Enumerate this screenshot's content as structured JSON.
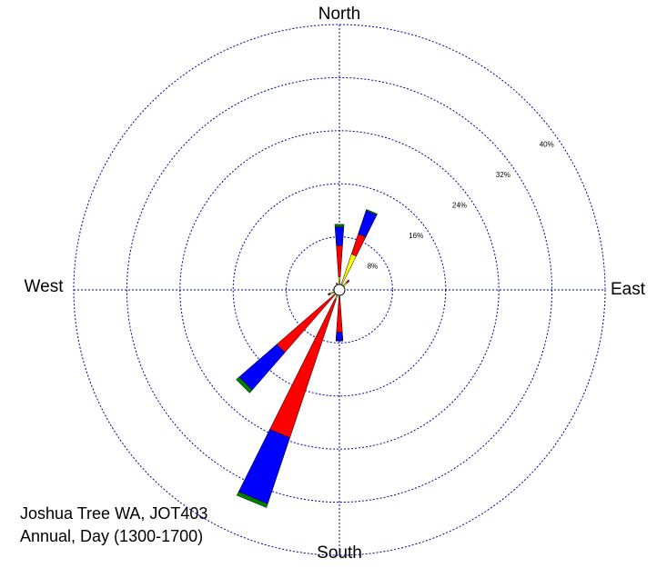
{
  "chart_data": {
    "type": "windrose",
    "direction_labels": [
      "North",
      "East",
      "South",
      "West"
    ],
    "x": [
      0,
      22.5,
      45,
      67.5,
      90,
      112.5,
      135,
      157.5,
      180,
      202.5,
      225,
      247.5,
      270,
      292.5,
      315,
      337.5
    ],
    "series": [
      {
        "color": "#ffff00",
        "values": [
          2,
          5.7,
          1.5,
          0.5,
          0.3,
          0.3,
          0.3,
          0.5,
          1,
          1.5,
          1,
          1.5,
          0.5,
          0.5,
          0.5,
          0.8
        ]
      },
      {
        "color": "#ff0000",
        "values": [
          4.7,
          3.2,
          0.5,
          0,
          0,
          0,
          0,
          0.3,
          5.4,
          22,
          11.5,
          0.3,
          0,
          0,
          0,
          0.3
        ]
      },
      {
        "color": "#0000ff",
        "values": [
          2.8,
          3.7,
          0,
          0,
          0,
          0,
          0,
          0,
          1.3,
          10.5,
          7.5,
          0,
          0,
          0,
          0,
          0
        ]
      },
      {
        "color": "#008000",
        "values": [
          0.4,
          0.2,
          0,
          0,
          0,
          0,
          0,
          0,
          0,
          0.6,
          0.6,
          0,
          0,
          0,
          0,
          0
        ]
      }
    ],
    "rlim": [
      0,
      40
    ],
    "rticks": [
      {
        "value": 8,
        "label": "8%"
      },
      {
        "value": 16,
        "label": "16%"
      },
      {
        "value": 24,
        "label": "24%"
      },
      {
        "value": 32,
        "label": "32%"
      },
      {
        "value": 40,
        "label": "40%"
      }
    ],
    "grid": true,
    "notes": [
      "Joshua Tree WA, JOT403",
      "Annual, Day (1300-1700)"
    ]
  }
}
